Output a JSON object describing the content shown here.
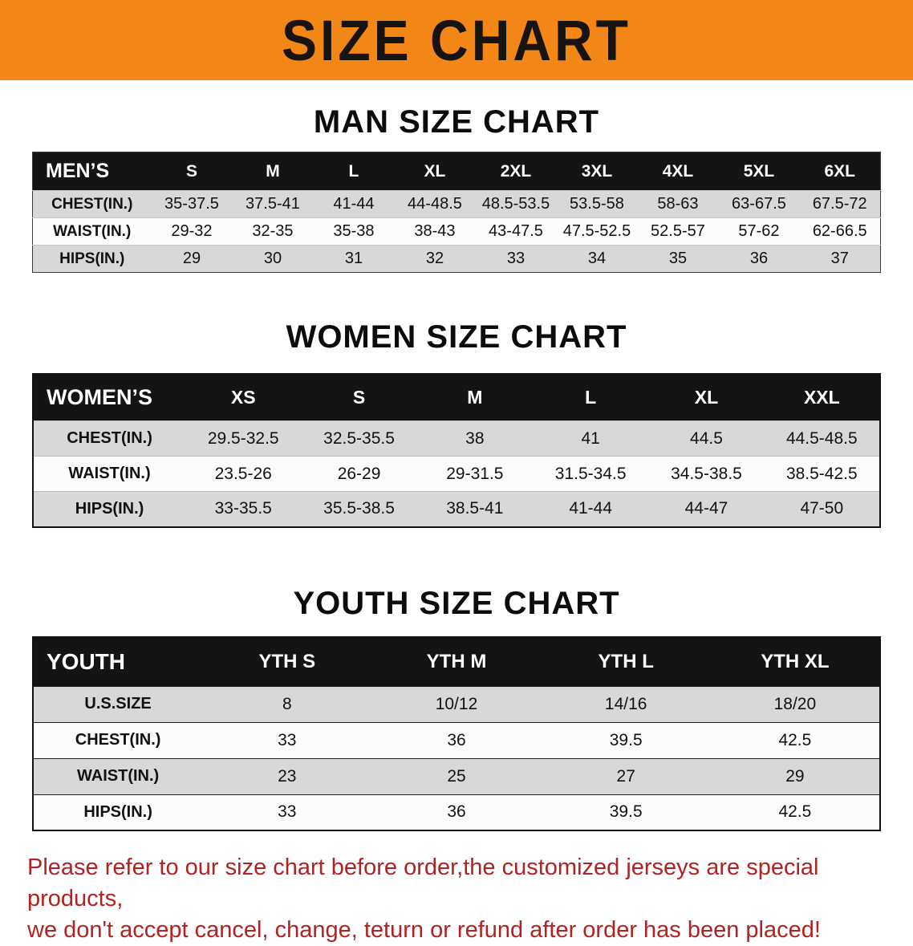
{
  "banner": {
    "title": "SIZE CHART"
  },
  "colors": {
    "banner-bg": "#f28718",
    "table-header-bg": "#141414",
    "table-header-text": "#ffffff",
    "row-gray": "#d8d8d8",
    "disclaimer-red": "#b22222"
  },
  "sections": {
    "men": {
      "heading": "MAN SIZE CHART",
      "table": {
        "header": [
          "MEN’S",
          "S",
          "M",
          "L",
          "XL",
          "2XL",
          "3XL",
          "4XL",
          "5XL",
          "6XL"
        ],
        "rows": [
          {
            "label": "CHEST(IN.)",
            "values": [
              "35-37.5",
              "37.5-41",
              "41-44",
              "44-48.5",
              "48.5-53.5",
              "53.5-58",
              "58-63",
              "63-67.5",
              "67.5-72"
            ]
          },
          {
            "label": "WAIST(IN.)",
            "values": [
              "29-32",
              "32-35",
              "35-38",
              "38-43",
              "43-47.5",
              "47.5-52.5",
              "52.5-57",
              "57-62",
              "62-66.5"
            ]
          },
          {
            "label": "HIPS(IN.)",
            "values": [
              "29",
              "30",
              "31",
              "32",
              "33",
              "34",
              "35",
              "36",
              "37"
            ]
          }
        ]
      }
    },
    "women": {
      "heading": "WOMEN SIZE CHART",
      "table": {
        "header": [
          "WOMEN’S",
          "XS",
          "S",
          "M",
          "L",
          "XL",
          "XXL"
        ],
        "rows": [
          {
            "label": "CHEST(IN.)",
            "values": [
              "29.5-32.5",
              "32.5-35.5",
              "38",
              "41",
              "44.5",
              "44.5-48.5"
            ]
          },
          {
            "label": "WAIST(IN.)",
            "values": [
              "23.5-26",
              "26-29",
              "29-31.5",
              "31.5-34.5",
              "34.5-38.5",
              "38.5-42.5"
            ]
          },
          {
            "label": "HIPS(IN.)",
            "values": [
              "33-35.5",
              "35.5-38.5",
              "38.5-41",
              "41-44",
              "44-47",
              "47-50"
            ]
          }
        ]
      }
    },
    "youth": {
      "heading": "YOUTH SIZE CHART",
      "table": {
        "header": [
          "YOUTH",
          "YTH S",
          "YTH M",
          "YTH L",
          "YTH XL"
        ],
        "rows": [
          {
            "label": "U.S.SIZE",
            "values": [
              "8",
              "10/12",
              "14/16",
              "18/20"
            ]
          },
          {
            "label": "CHEST(IN.)",
            "values": [
              "33",
              "36",
              "39.5",
              "42.5"
            ]
          },
          {
            "label": "WAIST(IN.)",
            "values": [
              "23",
              "25",
              "27",
              "29"
            ]
          },
          {
            "label": "HIPS(IN.)",
            "values": [
              "33",
              "36",
              "39.5",
              "42.5"
            ]
          }
        ]
      }
    }
  },
  "disclaimer": {
    "line1": "Please refer to our size chart before order,the customized jerseys are special products,",
    "line2": "we don't accept cancel, change, teturn or refund after order has been placed!"
  }
}
